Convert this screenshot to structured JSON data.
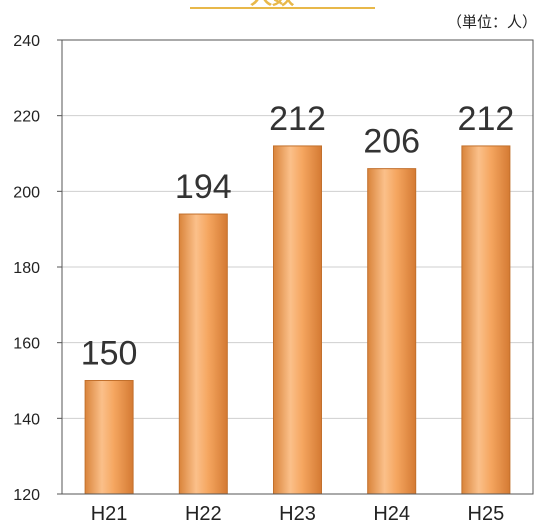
{
  "chart_data": {
    "type": "bar",
    "title": "人数",
    "unit": "（単位：人）",
    "categories": [
      "H21",
      "H22",
      "H23",
      "H24",
      "H25"
    ],
    "values": [
      150,
      194,
      212,
      206,
      212
    ],
    "ylim": [
      120,
      240
    ],
    "yticks": [
      120,
      140,
      160,
      180,
      200,
      220,
      240
    ],
    "grid": true,
    "bar_color": "#f0a25a",
    "bar_edge": "#c2702c"
  }
}
